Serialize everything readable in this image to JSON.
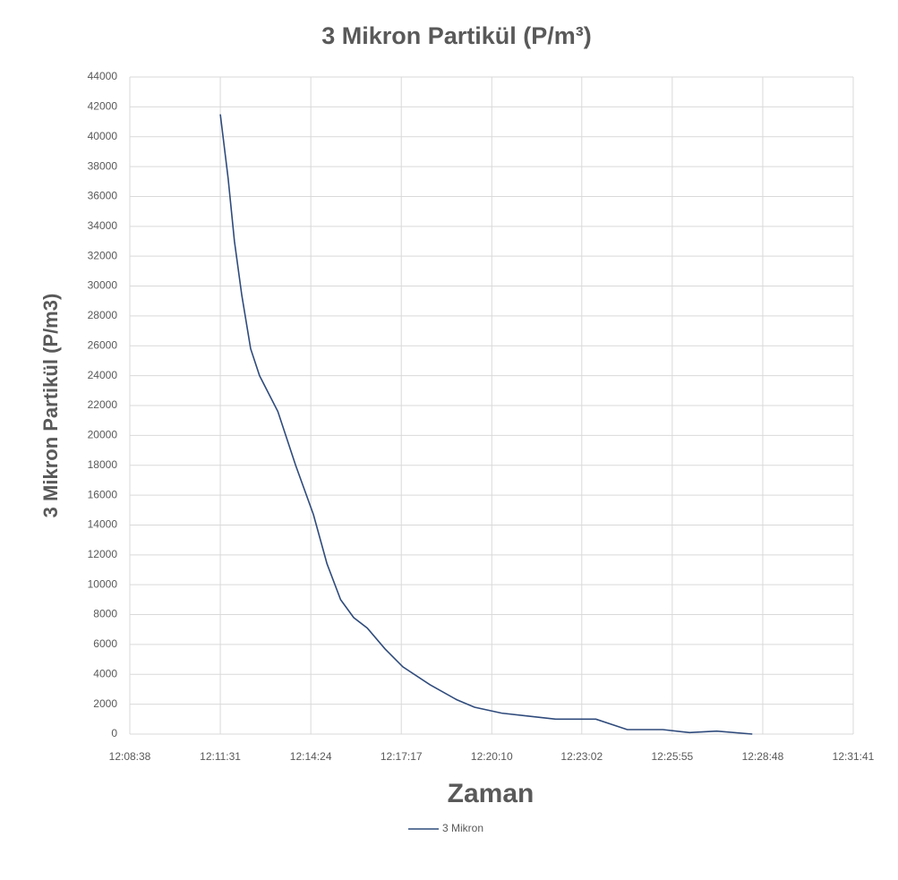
{
  "chart_data": {
    "type": "line",
    "title": "3 Mikron Partikül  (P/m³)",
    "x_label": "Zaman",
    "y_label": "3 Mikron Partikül (P/m3)",
    "xlim": [
      "12:08:38",
      "12:31:41"
    ],
    "xticks": [
      "12:08:38",
      "12:11:31",
      "12:14:24",
      "12:17:17",
      "12:20:10",
      "12:23:02",
      "12:25:55",
      "12:28:48",
      "12:31:41"
    ],
    "ylim": [
      0,
      44000
    ],
    "yticks": [
      0,
      2000,
      4000,
      6000,
      8000,
      10000,
      12000,
      14000,
      16000,
      18000,
      20000,
      22000,
      24000,
      26000,
      28000,
      30000,
      32000,
      34000,
      36000,
      38000,
      40000,
      42000,
      44000
    ],
    "grid": true,
    "legend": "bottom",
    "x": [
      "12:11:31",
      "12:11:46",
      "12:11:58",
      "12:12:12",
      "12:12:29",
      "12:12:46",
      "12:13:21",
      "12:13:55",
      "12:14:29",
      "12:14:55",
      "12:15:21",
      "12:15:46",
      "12:16:12",
      "12:16:46",
      "12:17:20",
      "12:18:12",
      "12:19:03",
      "12:19:37",
      "12:20:29",
      "12:21:20",
      "12:22:12",
      "12:23:29",
      "12:24:29",
      "12:25:37",
      "12:26:28",
      "12:27:20",
      "12:28:28"
    ],
    "series": [
      {
        "name": "3 Mikron",
        "color": "#2f4b7c",
        "values": [
          41500,
          37200,
          33000,
          29400,
          25800,
          24000,
          21600,
          18000,
          14700,
          11400,
          9000,
          7800,
          7100,
          5700,
          4500,
          3300,
          2300,
          1800,
          1400,
          1200,
          1000,
          1000,
          300,
          300,
          100,
          200,
          0
        ]
      }
    ]
  }
}
